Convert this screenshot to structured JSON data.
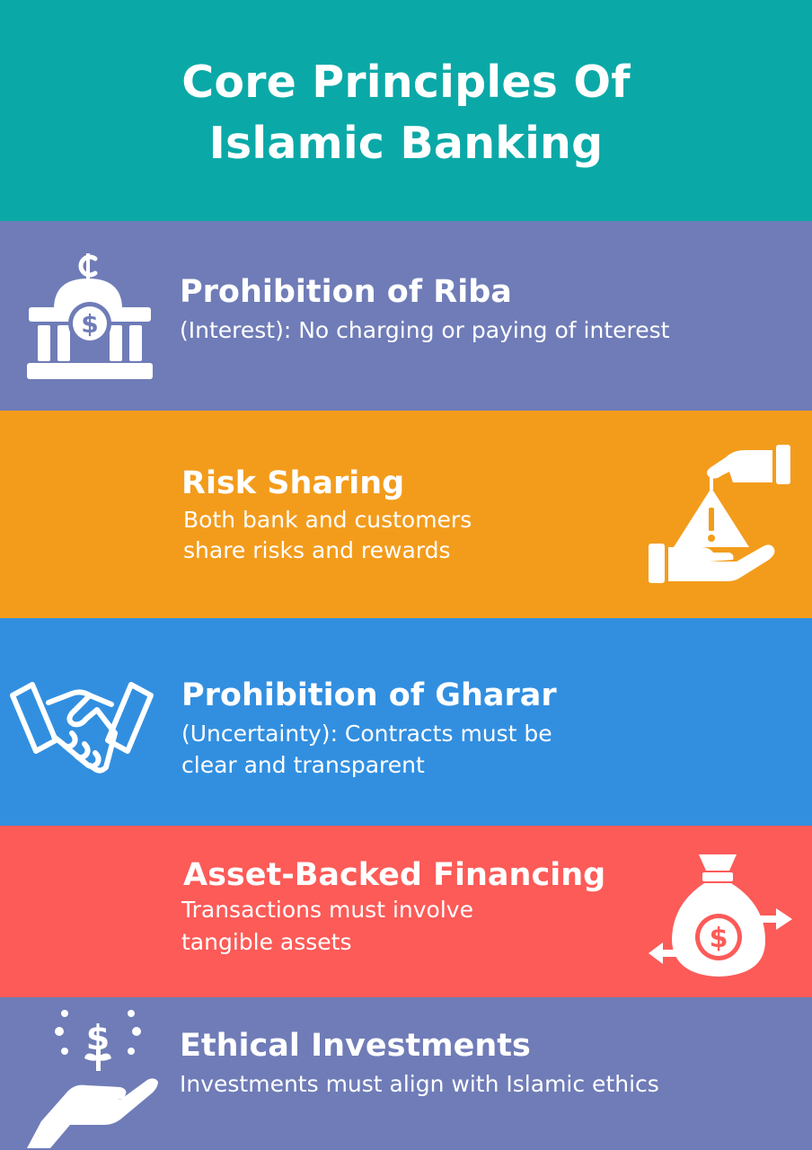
{
  "header": {
    "title_line1": "Core Principles Of",
    "title_line2": "Islamic Banking",
    "color": "#0aa9a7"
  },
  "principles": [
    {
      "heading": "Prohibition of Riba",
      "desc_line1": "(Interest): No charging or paying of interest",
      "color": "#6f7cb7",
      "icon": "bank-dollar-icon"
    },
    {
      "heading": "Risk Sharing",
      "desc_line1": "Both bank and customers",
      "desc_line2": "share risks and rewards",
      "color": "#f39c1c",
      "icon": "hand-risk-icon"
    },
    {
      "heading": "Prohibition of Gharar",
      "desc_line1": "(Uncertainty): Contracts must be",
      "desc_line2": "clear and transparent",
      "color": "#328fe0",
      "icon": "handshake-icon"
    },
    {
      "heading": "Asset-Backed Financing",
      "desc_line1": "Transactions must involve",
      "desc_line2": "tangible assets",
      "color": "#fc5b58",
      "icon": "money-bag-arrows-icon"
    },
    {
      "heading": "Ethical Investments",
      "desc_line1": "Investments must align with Islamic ethics",
      "color": "#6f7cb7",
      "icon": "hand-dollar-plant-icon"
    }
  ]
}
